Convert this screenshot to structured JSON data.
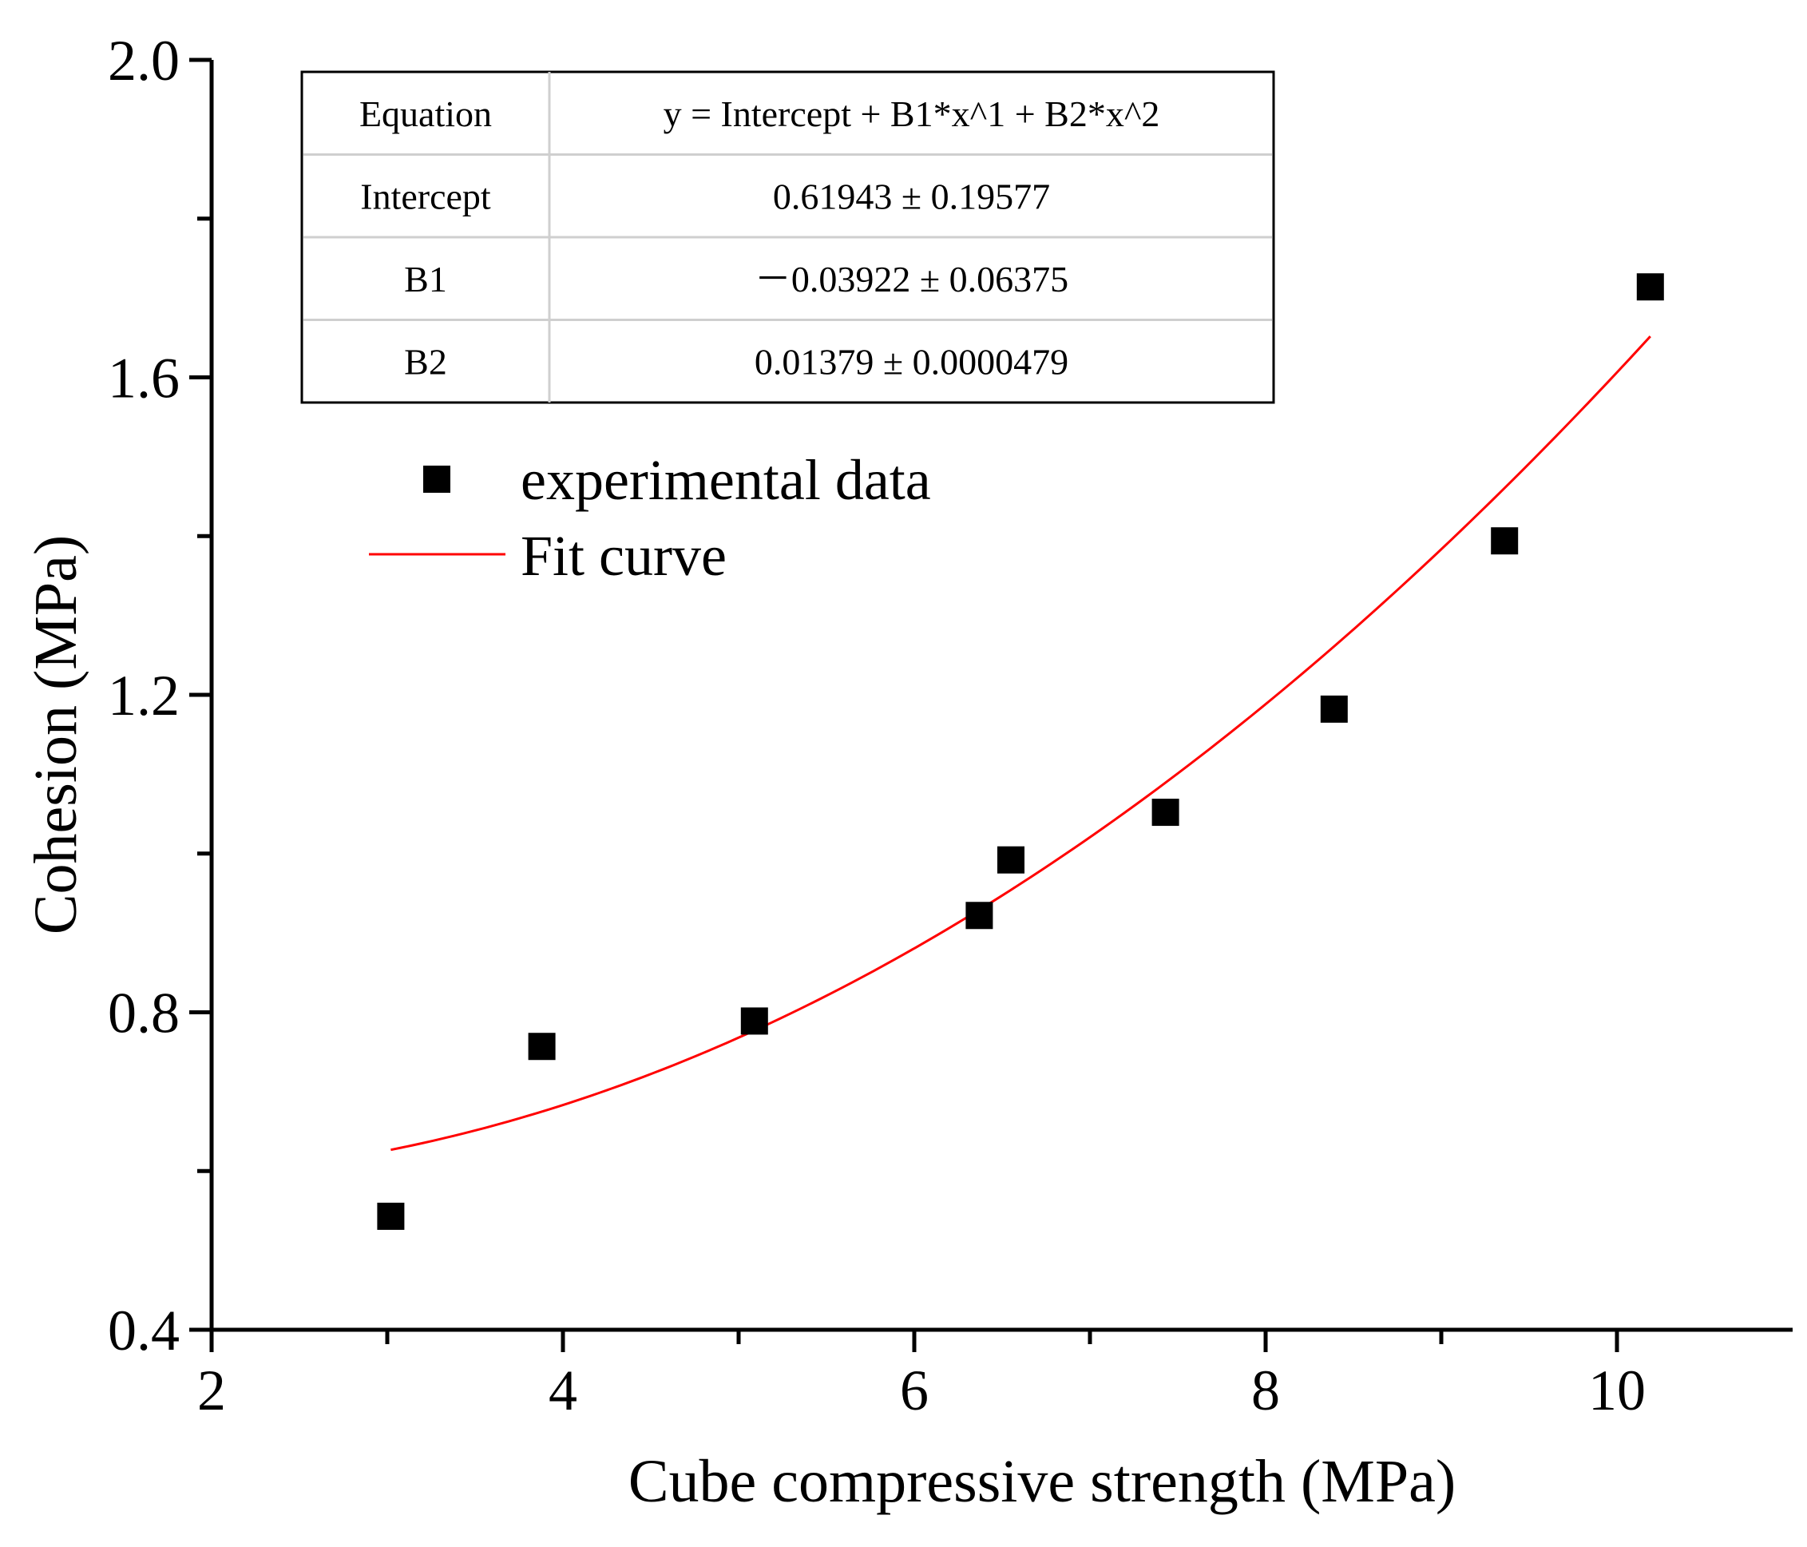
{
  "chart_data": {
    "type": "scatter",
    "title": "",
    "xlabel": "Cube compressive strength (MPa)",
    "ylabel": "Cohesion (MPa)",
    "xlim": [
      2,
      11
    ],
    "ylim": [
      0.4,
      2.0
    ],
    "x_ticks": [
      "2",
      "4",
      "6",
      "8",
      "10"
    ],
    "y_ticks": [
      "0.4",
      "0.8",
      "1.2",
      "1.6",
      "2.0"
    ],
    "grid": false,
    "legend_position": "upper-left",
    "series": [
      {
        "name": "experimental data",
        "kind": "scatter",
        "marker": "square",
        "color": "#000000",
        "x": [
          3.02,
          3.88,
          5.09,
          6.37,
          6.55,
          7.43,
          8.39,
          9.36,
          10.19
        ],
        "y": [
          0.543,
          0.757,
          0.789,
          0.922,
          0.992,
          1.052,
          1.182,
          1.394,
          1.714
        ]
      },
      {
        "name": "Fit curve",
        "kind": "line",
        "color": "#ff0000",
        "equation": {
          "intercept": 0.61943,
          "b1": -0.03922,
          "b2": 0.01379
        },
        "x_range": [
          3.02,
          10.19
        ]
      }
    ],
    "fit_table": {
      "rows": [
        {
          "label": "Equation",
          "value": "y = Intercept + B1*x^1 + B2*x^2"
        },
        {
          "label": "Intercept",
          "value": "0.61943 ± 0.19577"
        },
        {
          "label": "B1",
          "value": "－0.03922  ± 0.06375"
        },
        {
          "label": "B2",
          "value": "0.01379 ± 0.0000479"
        }
      ]
    }
  }
}
